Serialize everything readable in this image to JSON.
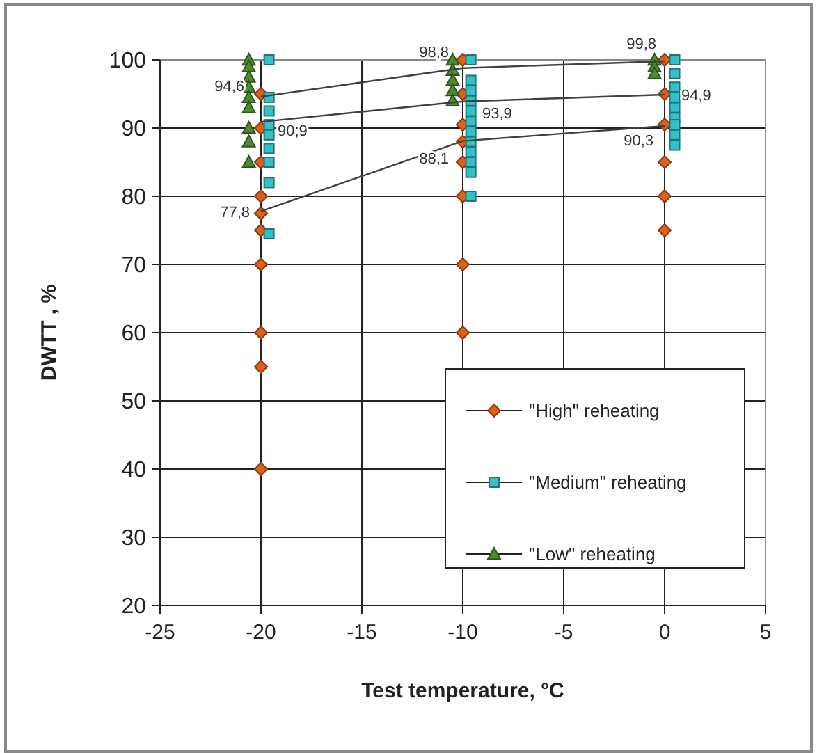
{
  "chart_data": {
    "type": "scatter",
    "xlabel": "Test temperature, °C",
    "ylabel": "DWTT , %",
    "xlim": [
      -25,
      5
    ],
    "xticks": [
      -25,
      -20,
      -15,
      -10,
      -5,
      0,
      5
    ],
    "ylim": [
      20,
      100
    ],
    "yticks": [
      20,
      30,
      40,
      50,
      60,
      70,
      80,
      90,
      100
    ],
    "grid": true,
    "legend": "bottom right",
    "series": [
      {
        "name": "\"High\" reheating",
        "marker": "diamond",
        "color": "#e0601a",
        "x": [
          -20,
          -20,
          -20,
          -20,
          -20,
          -20,
          -20,
          -20,
          -20,
          -20,
          -10,
          -10,
          -10,
          -10,
          -10,
          -10,
          -10,
          -10,
          0,
          0,
          0,
          0,
          0,
          0
        ],
        "values": [
          95,
          90,
          85,
          80,
          77.5,
          75,
          70,
          60,
          55,
          40,
          100,
          95,
          90.5,
          88,
          85,
          80,
          70,
          60,
          100,
          95,
          90.5,
          85,
          80,
          75
        ]
      },
      {
        "name": "\"Medium\" reheating",
        "marker": "square",
        "color": "#33c0c8",
        "x": [
          -19.6,
          -19.6,
          -19.6,
          -19.6,
          -19.6,
          -19.6,
          -19.6,
          -19.6,
          -19.6,
          -9.6,
          -9.6,
          -9.6,
          -9.6,
          -9.6,
          -9.6,
          -9.6,
          -9.6,
          -9.6,
          -9.6,
          -9.6,
          -9.6,
          0.5,
          0.5,
          0.5,
          0.5,
          0.5,
          0.5,
          0.5,
          0.5,
          0.5
        ],
        "values": [
          100,
          94.5,
          92.5,
          90.5,
          89,
          87,
          85,
          82,
          74.5,
          100,
          97,
          95.5,
          94,
          92.5,
          91,
          89.5,
          88,
          86.5,
          85,
          83.5,
          80,
          100,
          98,
          96,
          94.5,
          93,
          91.5,
          90.5,
          89,
          87.5
        ]
      },
      {
        "name": "\"Low\" reheating",
        "marker": "triangle",
        "color": "#4e8a2e",
        "x": [
          -20.6,
          -20.6,
          -20.6,
          -20.6,
          -20.6,
          -20.6,
          -20.6,
          -20.6,
          -20.6,
          -10.5,
          -10.5,
          -10.5,
          -10.5,
          -10.5,
          -0.5,
          -0.5,
          -0.5
        ],
        "values": [
          100,
          99,
          97.5,
          96,
          94.5,
          93,
          90,
          88,
          85,
          100,
          98.5,
          97,
          95.5,
          94,
          100,
          99,
          98
        ]
      },
      {
        "type": "line",
        "marker": "none",
        "color": "#404040",
        "x": [
          -20,
          -10,
          0
        ],
        "values": [
          94.6,
          98.8,
          99.8
        ],
        "value_labels": [
          "94,6",
          "98,8",
          "99,8"
        ]
      },
      {
        "type": "line",
        "marker": "none",
        "color": "#404040",
        "x": [
          -20,
          -10,
          0
        ],
        "values": [
          90.9,
          93.9,
          94.9
        ],
        "value_labels": [
          "90,9",
          "93,9",
          "94,9"
        ]
      },
      {
        "type": "line",
        "marker": "none",
        "color": "#404040",
        "x": [
          -20,
          -10,
          0
        ],
        "values": [
          77.8,
          88.1,
          90.3
        ],
        "value_labels": [
          "77,8",
          "88,1",
          "90,3"
        ]
      }
    ]
  }
}
